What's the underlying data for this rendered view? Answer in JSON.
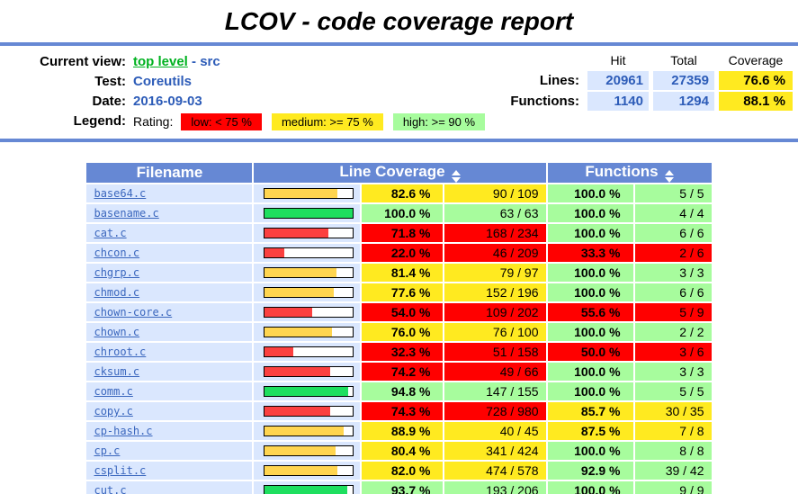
{
  "title": "LCOV - code coverage report",
  "header": {
    "current_view_label": "Current view:",
    "current_view_link": "top level",
    "current_view_sep": "-",
    "current_view_page": "src",
    "test_label": "Test:",
    "test_value": "Coreutils",
    "date_label": "Date:",
    "date_value": "2016-09-03",
    "legend_label": "Legend:",
    "rating_label": "Rating:",
    "legend_items": [
      {
        "label": "low: < 75 %",
        "rating": "low"
      },
      {
        "label": "medium: >= 75 %",
        "rating": "medium"
      },
      {
        "label": "high: >= 90 %",
        "rating": "high"
      }
    ],
    "stats": {
      "col_headers": [
        "Hit",
        "Total",
        "Coverage"
      ],
      "rows": [
        {
          "label": "Lines:",
          "hit": "20961",
          "total": "27359",
          "coverage": "76.6 %"
        },
        {
          "label": "Functions:",
          "hit": "1140",
          "total": "1294",
          "coverage": "88.1 %"
        }
      ]
    }
  },
  "table": {
    "col_filename": "Filename",
    "col_line_coverage": "Line Coverage",
    "col_functions": "Functions",
    "sort_icon": "updown-triangles",
    "files": [
      {
        "name": "base64.c",
        "line_pct": "82.6 %",
        "line_pct_num": 82.6,
        "line_ratio": "90 / 109",
        "line_rating": "medium",
        "func_pct": "100.0 %",
        "func_ratio": "5 / 5",
        "func_rating": "high"
      },
      {
        "name": "basename.c",
        "line_pct": "100.0 %",
        "line_pct_num": 100.0,
        "line_ratio": "63 / 63",
        "line_rating": "high",
        "func_pct": "100.0 %",
        "func_ratio": "4 / 4",
        "func_rating": "high"
      },
      {
        "name": "cat.c",
        "line_pct": "71.8 %",
        "line_pct_num": 71.8,
        "line_ratio": "168 / 234",
        "line_rating": "low",
        "func_pct": "100.0 %",
        "func_ratio": "6 / 6",
        "func_rating": "high"
      },
      {
        "name": "chcon.c",
        "line_pct": "22.0 %",
        "line_pct_num": 22.0,
        "line_ratio": "46 / 209",
        "line_rating": "low",
        "func_pct": "33.3 %",
        "func_ratio": "2 / 6",
        "func_rating": "low"
      },
      {
        "name": "chgrp.c",
        "line_pct": "81.4 %",
        "line_pct_num": 81.4,
        "line_ratio": "79 / 97",
        "line_rating": "medium",
        "func_pct": "100.0 %",
        "func_ratio": "3 / 3",
        "func_rating": "high"
      },
      {
        "name": "chmod.c",
        "line_pct": "77.6 %",
        "line_pct_num": 77.6,
        "line_ratio": "152 / 196",
        "line_rating": "medium",
        "func_pct": "100.0 %",
        "func_ratio": "6 / 6",
        "func_rating": "high"
      },
      {
        "name": "chown-core.c",
        "line_pct": "54.0 %",
        "line_pct_num": 54.0,
        "line_ratio": "109 / 202",
        "line_rating": "low",
        "func_pct": "55.6 %",
        "func_ratio": "5 / 9",
        "func_rating": "low"
      },
      {
        "name": "chown.c",
        "line_pct": "76.0 %",
        "line_pct_num": 76.0,
        "line_ratio": "76 / 100",
        "line_rating": "medium",
        "func_pct": "100.0 %",
        "func_ratio": "2 / 2",
        "func_rating": "high"
      },
      {
        "name": "chroot.c",
        "line_pct": "32.3 %",
        "line_pct_num": 32.3,
        "line_ratio": "51 / 158",
        "line_rating": "low",
        "func_pct": "50.0 %",
        "func_ratio": "3 / 6",
        "func_rating": "low"
      },
      {
        "name": "cksum.c",
        "line_pct": "74.2 %",
        "line_pct_num": 74.2,
        "line_ratio": "49 / 66",
        "line_rating": "low",
        "func_pct": "100.0 %",
        "func_ratio": "3 / 3",
        "func_rating": "high"
      },
      {
        "name": "comm.c",
        "line_pct": "94.8 %",
        "line_pct_num": 94.8,
        "line_ratio": "147 / 155",
        "line_rating": "high",
        "func_pct": "100.0 %",
        "func_ratio": "5 / 5",
        "func_rating": "high"
      },
      {
        "name": "copy.c",
        "line_pct": "74.3 %",
        "line_pct_num": 74.3,
        "line_ratio": "728 / 980",
        "line_rating": "low",
        "func_pct": "85.7 %",
        "func_ratio": "30 / 35",
        "func_rating": "medium"
      },
      {
        "name": "cp-hash.c",
        "line_pct": "88.9 %",
        "line_pct_num": 88.9,
        "line_ratio": "40 / 45",
        "line_rating": "medium",
        "func_pct": "87.5 %",
        "func_ratio": "7 / 8",
        "func_rating": "medium"
      },
      {
        "name": "cp.c",
        "line_pct": "80.4 %",
        "line_pct_num": 80.4,
        "line_ratio": "341 / 424",
        "line_rating": "medium",
        "func_pct": "100.0 %",
        "func_ratio": "8 / 8",
        "func_rating": "high"
      },
      {
        "name": "csplit.c",
        "line_pct": "82.0 %",
        "line_pct_num": 82.0,
        "line_ratio": "474 / 578",
        "line_rating": "medium",
        "func_pct": "92.9 %",
        "func_ratio": "39 / 42",
        "func_rating": "high"
      },
      {
        "name": "cut.c",
        "line_pct": "93.7 %",
        "line_pct_num": 93.7,
        "line_ratio": "193 / 206",
        "line_rating": "high",
        "func_pct": "100.0 %",
        "func_ratio": "9 / 9",
        "func_rating": "high"
      }
    ]
  },
  "colors": {
    "rule_blue": "#6688D4",
    "table_head_blue": "#6688D4",
    "cell_light_blue": "#DAE7FE",
    "low_bg": "#FF0000",
    "medium_bg": "#FFEA20",
    "high_bg": "#A7FC9D",
    "bar_low": "#FB4040",
    "bar_medium": "#FFD550",
    "bar_high": "#1EDF5F",
    "link_green": "#00B220",
    "value_blue": "#2D5CB8",
    "file_link_blue": "#3B67BE"
  }
}
